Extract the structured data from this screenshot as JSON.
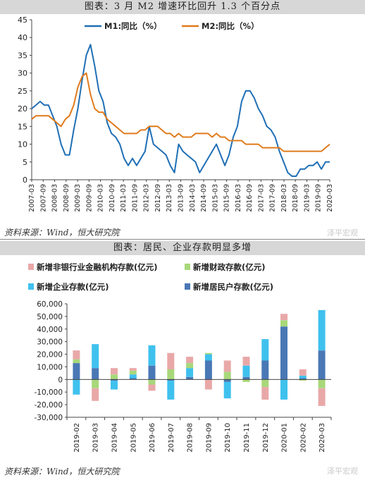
{
  "page": {
    "chart1_title": "图表：3 月 M2 增速环比回升 1.3 个百分点",
    "chart1_source": "资料来源：Wind，恒大研究院",
    "chart2_title": "图表：居民、企业存款明显多增",
    "chart2_source": "资料来源：Wind，恒大研究院",
    "watermark": "泽平宏观"
  },
  "colors": {
    "m1": "#1f6fb5",
    "m2": "#e07b1c",
    "nonbank": "#e9a8a8",
    "fiscal": "#a8d87a",
    "corp": "#3fc1ee",
    "household": "#4a78b5"
  },
  "chart_data": [
    {
      "type": "line",
      "title": "",
      "x_ticks": [
        "2007-03",
        "2007-09",
        "2008-03",
        "2008-09",
        "2009-03",
        "2009-09",
        "2010-03",
        "2010-09",
        "2011-03",
        "2011-09",
        "2012-03",
        "2012-09",
        "2013-03",
        "2013-09",
        "2014-03",
        "2014-09",
        "2015-03",
        "2015-09",
        "2016-03",
        "2016-09",
        "2017-03",
        "2017-09",
        "2018-03",
        "2018-09",
        "2019-03",
        "2019-09",
        "2020-03"
      ],
      "ylim": [
        0,
        45
      ],
      "y_ticks": [
        "0",
        "5",
        "10",
        "15",
        "20",
        "25",
        "30",
        "35",
        "40",
        "45"
      ],
      "legend_position": "top",
      "series": [
        {
          "name": "M1:同比（%）",
          "values": [
            20,
            21,
            22,
            21,
            21,
            18,
            15,
            10,
            7,
            7,
            14,
            20,
            28,
            35,
            38,
            32,
            25,
            22,
            16,
            13,
            12,
            10,
            6,
            4,
            6,
            4,
            6,
            8,
            15,
            10,
            9,
            8,
            7,
            4,
            2,
            10,
            8,
            7,
            6,
            5,
            2,
            4,
            6,
            8,
            10,
            7,
            4,
            7,
            12,
            15,
            22,
            25,
            25,
            23,
            20,
            18,
            15,
            14,
            12,
            8,
            5,
            2,
            1,
            1,
            3,
            3,
            4,
            4,
            5,
            3,
            5,
            5
          ]
        },
        {
          "name": "M2:同比（%）",
          "values": [
            17,
            18,
            18,
            18,
            18,
            17,
            16,
            15,
            17,
            18,
            21,
            26,
            29,
            30,
            24,
            20,
            19,
            19,
            17,
            16,
            15,
            14,
            13,
            13,
            13,
            13,
            14,
            14,
            15,
            15,
            15,
            14,
            13,
            13,
            12,
            13,
            12,
            12,
            12,
            13,
            13,
            13,
            13,
            12,
            13,
            12,
            12,
            11,
            11,
            11,
            11,
            10,
            10,
            10,
            10,
            9,
            9,
            9,
            9,
            9,
            8,
            8,
            8,
            8,
            8,
            8,
            8,
            8,
            8,
            8,
            9,
            10
          ]
        }
      ]
    },
    {
      "type": "bar",
      "title": "",
      "categories": [
        "2019-02",
        "2019-03",
        "2019-04",
        "2019-05",
        "2019-06",
        "2019-07",
        "2019-08",
        "2019-09",
        "2019-10",
        "2019-11",
        "2019-12",
        "2020-01",
        "2020-02",
        "2020-03"
      ],
      "ylim": [
        -30000,
        60000
      ],
      "y_ticks": [
        "-30,000",
        "-20,000",
        "-10,000",
        "0",
        "10,000",
        "20,000",
        "30,000",
        "40,000",
        "50,000",
        "60,000"
      ],
      "legend_position": "top",
      "series": [
        {
          "name": "新增非银行业金融机构存款(亿元)",
          "key": "nonbank",
          "values": [
            7000,
            -10000,
            5000,
            2000,
            -5000,
            13000,
            5000,
            -8000,
            9000,
            7000,
            -10000,
            5000,
            5000,
            -14000
          ]
        },
        {
          "name": "新增财政存款(亿元)",
          "key": "fiscal",
          "values": [
            3000,
            -7000,
            4000,
            3000,
            -4000,
            8000,
            4000,
            1000,
            6000,
            -2000,
            -6000,
            5000,
            -1000,
            -7000
          ]
        },
        {
          "name": "新增企业存款(亿元)",
          "key": "corp",
          "values": [
            -12000,
            19000,
            -7000,
            3000,
            16000,
            -15000,
            7000,
            5000,
            -13000,
            9000,
            17000,
            -16000,
            2000,
            32000
          ]
        },
        {
          "name": "新增居民户存款(亿元)",
          "key": "household",
          "values": [
            13000,
            9000,
            -1000,
            1000,
            11000,
            -1000,
            2000,
            15000,
            -2000,
            2000,
            15000,
            42000,
            1000,
            23000
          ]
        }
      ]
    }
  ]
}
